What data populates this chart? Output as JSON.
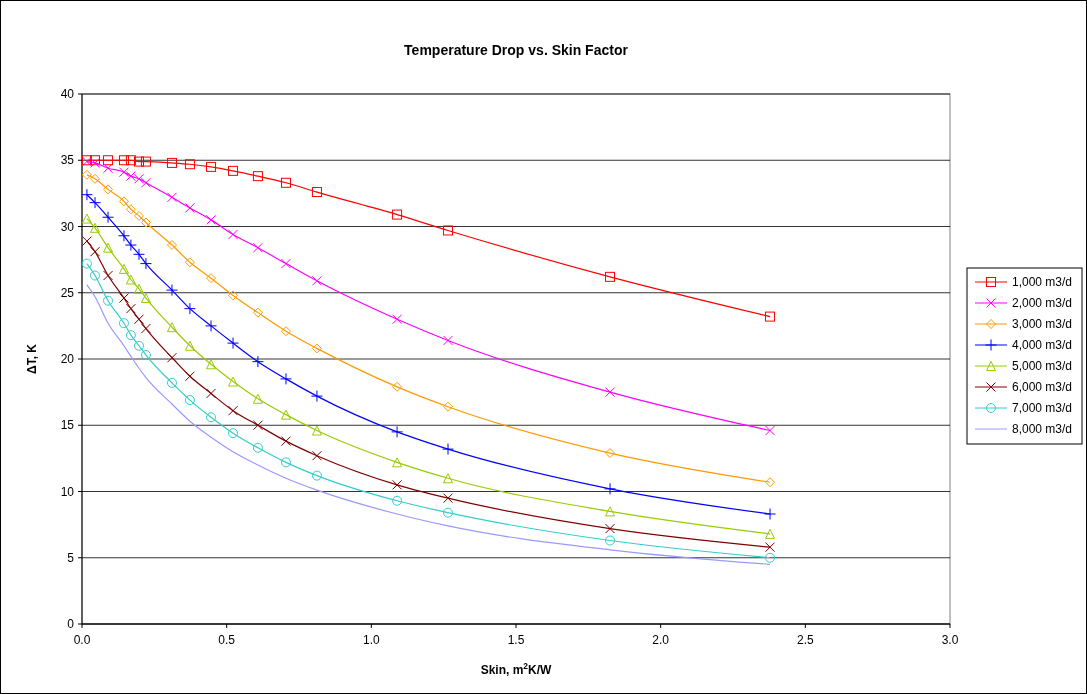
{
  "chart_data": {
    "type": "line",
    "title": "Temperature Drop vs. Skin Factor",
    "xlabel": "Skin, m$^{2}$K/W",
    "ylabel": "ΔT, K",
    "x": [
      0.017,
      0.045,
      0.09,
      0.145,
      0.169,
      0.197,
      0.221,
      0.311,
      0.373,
      0.446,
      0.522,
      0.608,
      0.705,
      0.812,
      1.089,
      1.265,
      1.825,
      2.378
    ],
    "xlim": [
      0,
      3
    ],
    "xticks": [
      {
        "value": 0,
        "label": "0.0"
      },
      {
        "value": 0.5,
        "label": "0.5"
      },
      {
        "value": 1,
        "label": "1.0"
      },
      {
        "value": 1.5,
        "label": "1.5"
      },
      {
        "value": 2,
        "label": "2.0"
      },
      {
        "value": 2.5,
        "label": "2.5"
      },
      {
        "value": 3,
        "label": "3.0"
      }
    ],
    "ylim": [
      0,
      40
    ],
    "yticks": [
      0,
      5,
      10,
      15,
      20,
      25,
      30,
      35,
      40
    ],
    "grid": "y",
    "legend": "right",
    "series": [
      {
        "name": "1,000 m3/d",
        "color": "#ff0000",
        "marker": "square",
        "values": [
          35,
          35,
          35,
          35,
          35,
          34.9,
          34.9,
          34.8,
          34.7,
          34.5,
          34.2,
          33.8,
          33.3,
          32.6,
          30.9,
          29.7,
          26.2,
          23.2
        ]
      },
      {
        "name": "2,000 m3/d",
        "color": "#ff00ff",
        "marker": "cross",
        "values": [
          34.9,
          34.8,
          34.4,
          34.1,
          33.8,
          33.6,
          33.3,
          32.2,
          31.4,
          30.5,
          29.4,
          28.4,
          27.2,
          25.9,
          23.0,
          21.4,
          17.5,
          14.6
        ]
      },
      {
        "name": "3,000 m3/d",
        "color": "#ff9900",
        "marker": "diamond",
        "values": [
          33.9,
          33.6,
          32.8,
          31.9,
          31.3,
          30.8,
          30.3,
          28.6,
          27.3,
          26.1,
          24.8,
          23.5,
          22.1,
          20.8,
          17.9,
          16.4,
          12.9,
          10.7
        ]
      },
      {
        "name": "4,000 m3/d",
        "color": "#0000ff",
        "marker": "plus",
        "values": [
          32.4,
          31.8,
          30.7,
          29.3,
          28.6,
          27.9,
          27.2,
          25.2,
          23.8,
          22.5,
          21.2,
          19.8,
          18.5,
          17.2,
          14.5,
          13.2,
          10.2,
          8.3
        ]
      },
      {
        "name": "5,000 m3/d",
        "color": "#99cc00",
        "marker": "triangle",
        "values": [
          30.6,
          29.9,
          28.4,
          26.8,
          26.0,
          25.3,
          24.6,
          22.4,
          21.0,
          19.6,
          18.3,
          17.0,
          15.8,
          14.6,
          12.2,
          11.0,
          8.5,
          6.8
        ]
      },
      {
        "name": "6,000 m3/d",
        "color": "#800000",
        "marker": "cross",
        "values": [
          28.9,
          28.1,
          26.3,
          24.6,
          23.8,
          23.0,
          22.3,
          20.1,
          18.7,
          17.4,
          16.1,
          15.0,
          13.8,
          12.7,
          10.5,
          9.5,
          7.2,
          5.8
        ]
      },
      {
        "name": "7,000 m3/d",
        "color": "#33cccc",
        "marker": "circle",
        "values": [
          27.2,
          26.3,
          24.4,
          22.7,
          21.8,
          21.0,
          20.3,
          18.2,
          16.9,
          15.6,
          14.4,
          13.3,
          12.2,
          11.2,
          9.3,
          8.4,
          6.3,
          5.0
        ]
      },
      {
        "name": "8,000 m3/d",
        "color": "#9999ff",
        "marker": "none",
        "values": [
          25.6,
          24.7,
          22.7,
          21.0,
          20.2,
          19.3,
          18.6,
          16.6,
          15.3,
          14.1,
          13.0,
          12.0,
          11.0,
          10.1,
          8.3,
          7.4,
          5.6,
          4.5
        ]
      }
    ]
  }
}
